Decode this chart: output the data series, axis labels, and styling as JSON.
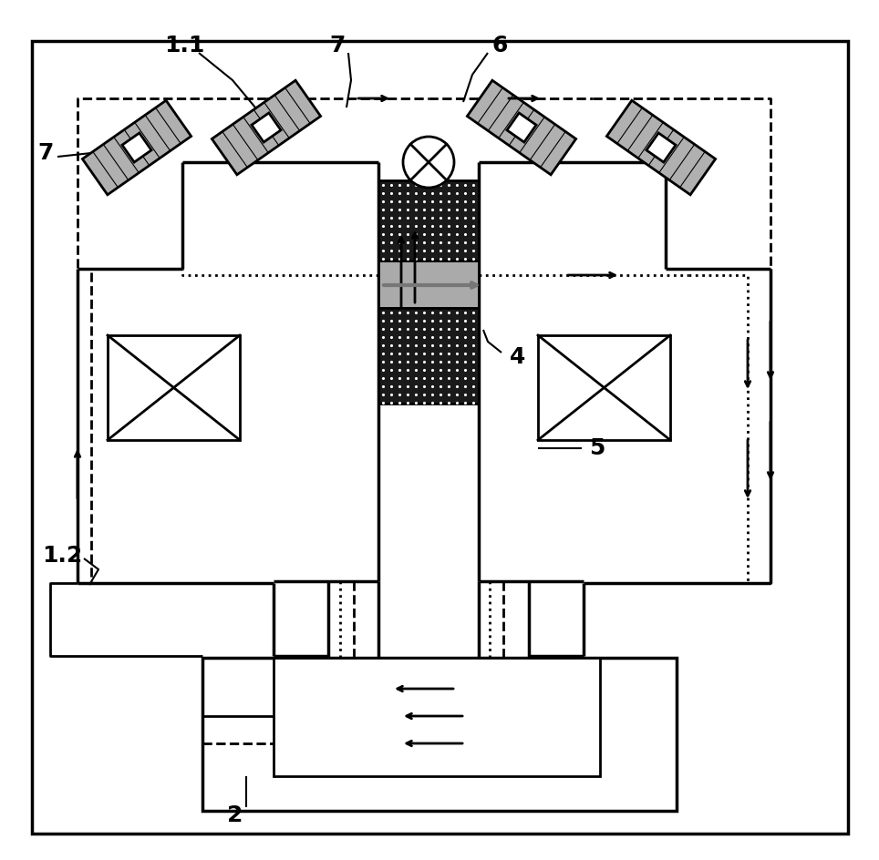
{
  "bg_color": "#ffffff",
  "line_color": "#000000",
  "lw": 2.0,
  "lw_thick": 2.5,
  "label_fontsize": 18,
  "gray_dark": "#222222",
  "gray_mid": "#888888",
  "gray_light": "#cccccc"
}
